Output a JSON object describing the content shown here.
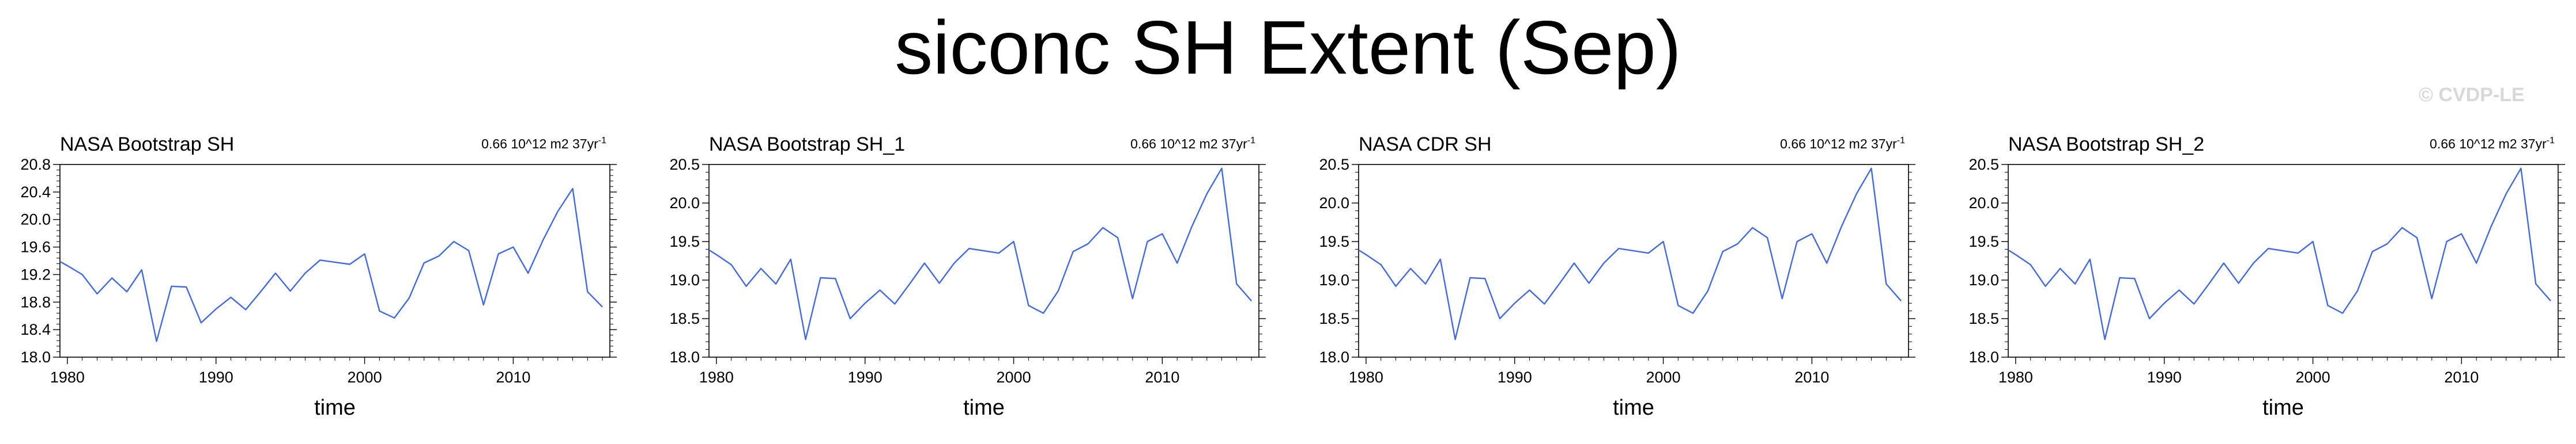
{
  "title": "siconc SH Extent (Sep)",
  "watermark": "© CVDP-LE",
  "chart_data": [
    {
      "type": "line",
      "title": "NASA Bootstrap SH",
      "trend_label": "0.66 10^12 m2 37yr",
      "trend_exp": "-1",
      "xlabel": "time",
      "ylabel": "",
      "xlim": [
        1979.5,
        2016.5
      ],
      "ylim": [
        18.0,
        20.8
      ],
      "yticks": [
        "18.0",
        "18.4",
        "18.8",
        "19.2",
        "19.6",
        "20.0",
        "20.4",
        "20.8"
      ],
      "xticks": [
        1980,
        1990,
        2000,
        2010
      ],
      "line_color": "#4169e1",
      "grid": false,
      "x": [
        1979,
        1980,
        1981,
        1982,
        1983,
        1984,
        1985,
        1986,
        1987,
        1988,
        1989,
        1990,
        1991,
        1992,
        1993,
        1994,
        1995,
        1996,
        1997,
        1998,
        1999,
        2000,
        2001,
        2002,
        2003,
        2004,
        2005,
        2006,
        2007,
        2008,
        2009,
        2010,
        2011,
        2012,
        2013,
        2014,
        2015,
        2016
      ],
      "y": [
        19.45,
        19.33,
        19.2,
        18.92,
        19.15,
        18.95,
        19.27,
        18.23,
        19.03,
        19.02,
        18.5,
        18.7,
        18.87,
        18.69,
        18.95,
        19.22,
        18.96,
        19.22,
        19.41,
        19.38,
        19.35,
        19.5,
        18.67,
        18.57,
        18.86,
        19.37,
        19.47,
        19.68,
        19.55,
        18.76,
        19.5,
        19.6,
        19.22,
        19.7,
        20.12,
        20.45,
        18.95,
        18.73
      ]
    },
    {
      "type": "line",
      "title": "NASA Bootstrap SH_1",
      "trend_label": "0.66 10^12 m2 37yr",
      "trend_exp": "-1",
      "xlabel": "time",
      "ylabel": "",
      "xlim": [
        1979.5,
        2016.5
      ],
      "ylim": [
        18.0,
        20.5
      ],
      "yticks": [
        "18.0",
        "18.5",
        "19.0",
        "19.5",
        "20.0",
        "20.5"
      ],
      "xticks": [
        1980,
        1990,
        2000,
        2010
      ],
      "line_color": "#4169e1",
      "grid": false,
      "x": [
        1979,
        1980,
        1981,
        1982,
        1983,
        1984,
        1985,
        1986,
        1987,
        1988,
        1989,
        1990,
        1991,
        1992,
        1993,
        1994,
        1995,
        1996,
        1997,
        1998,
        1999,
        2000,
        2001,
        2002,
        2003,
        2004,
        2005,
        2006,
        2007,
        2008,
        2009,
        2010,
        2011,
        2012,
        2013,
        2014,
        2015,
        2016
      ],
      "y": [
        19.45,
        19.33,
        19.2,
        18.92,
        19.15,
        18.95,
        19.27,
        18.23,
        19.03,
        19.02,
        18.5,
        18.7,
        18.87,
        18.69,
        18.95,
        19.22,
        18.96,
        19.22,
        19.41,
        19.38,
        19.35,
        19.5,
        18.67,
        18.57,
        18.86,
        19.37,
        19.47,
        19.68,
        19.55,
        18.76,
        19.5,
        19.6,
        19.22,
        19.7,
        20.12,
        20.45,
        18.95,
        18.73
      ]
    },
    {
      "type": "line",
      "title": "NASA CDR SH",
      "trend_label": "0.66 10^12 m2 37yr",
      "trend_exp": "-1",
      "xlabel": "time",
      "ylabel": "",
      "xlim": [
        1979.5,
        2016.5
      ],
      "ylim": [
        18.0,
        20.5
      ],
      "yticks": [
        "18.0",
        "18.5",
        "19.0",
        "19.5",
        "20.0",
        "20.5"
      ],
      "xticks": [
        1980,
        1990,
        2000,
        2010
      ],
      "line_color": "#4169e1",
      "grid": false,
      "x": [
        1979,
        1980,
        1981,
        1982,
        1983,
        1984,
        1985,
        1986,
        1987,
        1988,
        1989,
        1990,
        1991,
        1992,
        1993,
        1994,
        1995,
        1996,
        1997,
        1998,
        1999,
        2000,
        2001,
        2002,
        2003,
        2004,
        2005,
        2006,
        2007,
        2008,
        2009,
        2010,
        2011,
        2012,
        2013,
        2014,
        2015,
        2016
      ],
      "y": [
        19.45,
        19.33,
        19.2,
        18.92,
        19.15,
        18.95,
        19.27,
        18.23,
        19.03,
        19.02,
        18.5,
        18.7,
        18.87,
        18.69,
        18.95,
        19.22,
        18.96,
        19.22,
        19.41,
        19.38,
        19.35,
        19.5,
        18.67,
        18.57,
        18.86,
        19.37,
        19.47,
        19.68,
        19.55,
        18.76,
        19.5,
        19.6,
        19.22,
        19.7,
        20.12,
        20.45,
        18.95,
        18.73
      ]
    },
    {
      "type": "line",
      "title": "NASA Bootstrap SH_2",
      "trend_label": "0.66 10^12 m2 37yr",
      "trend_exp": "-1",
      "xlabel": "time",
      "ylabel": "",
      "xlim": [
        1979.5,
        2016.5
      ],
      "ylim": [
        18.0,
        20.5
      ],
      "yticks": [
        "18.0",
        "18.5",
        "19.0",
        "19.5",
        "20.0",
        "20.5"
      ],
      "xticks": [
        1980,
        1990,
        2000,
        2010
      ],
      "line_color": "#4169e1",
      "grid": false,
      "x": [
        1979,
        1980,
        1981,
        1982,
        1983,
        1984,
        1985,
        1986,
        1987,
        1988,
        1989,
        1990,
        1991,
        1992,
        1993,
        1994,
        1995,
        1996,
        1997,
        1998,
        1999,
        2000,
        2001,
        2002,
        2003,
        2004,
        2005,
        2006,
        2007,
        2008,
        2009,
        2010,
        2011,
        2012,
        2013,
        2014,
        2015,
        2016
      ],
      "y": [
        19.45,
        19.33,
        19.2,
        18.92,
        19.15,
        18.95,
        19.27,
        18.23,
        19.03,
        19.02,
        18.5,
        18.7,
        18.87,
        18.69,
        18.95,
        19.22,
        18.96,
        19.22,
        19.41,
        19.38,
        19.35,
        19.5,
        18.67,
        18.57,
        18.86,
        19.37,
        19.47,
        19.68,
        19.55,
        18.76,
        19.5,
        19.6,
        19.22,
        19.7,
        20.12,
        20.45,
        18.95,
        18.73
      ]
    }
  ]
}
